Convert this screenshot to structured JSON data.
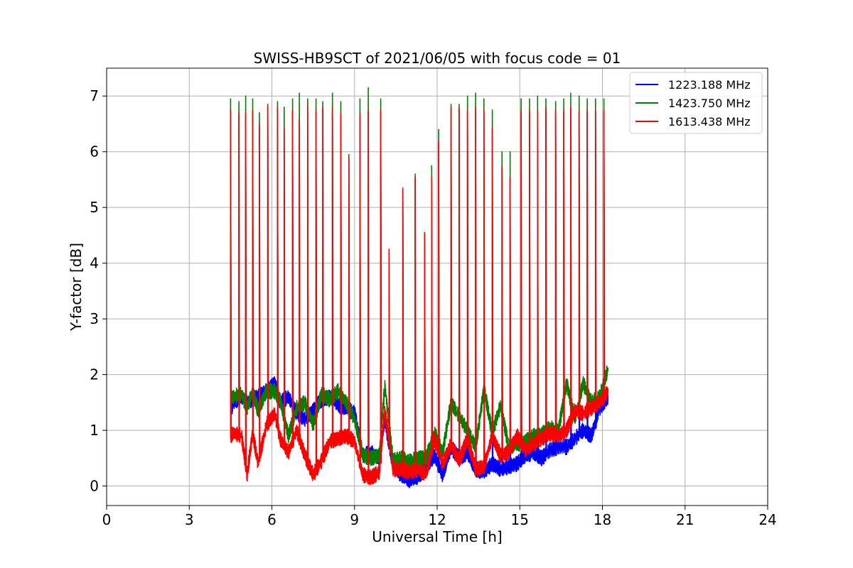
{
  "chart_data": {
    "type": "line",
    "title": "SWISS-HB9SCT of 2021/06/05 with focus code = 01",
    "xlabel": "Universal Time [h]",
    "ylabel": "Y-factor [dB]",
    "xlim": [
      0,
      24
    ],
    "ylim": [
      -0.35,
      7.5
    ],
    "xticks": [
      0,
      3,
      6,
      9,
      12,
      15,
      18,
      21,
      24
    ],
    "yticks": [
      0,
      1,
      2,
      3,
      4,
      5,
      6,
      7
    ],
    "grid": true,
    "legend_position": "top-right",
    "colors": {
      "1223.188 MHz": "#0000ff",
      "1423.750 MHz": "#008000",
      "1613.438 MHz": "#ff0000"
    },
    "series": [
      {
        "name": "1223.188 MHz",
        "color": "#0000ff",
        "x": [
          4.5,
          4.6,
          4.9,
          5.1,
          5.3,
          5.5,
          5.8,
          6.1,
          6.3,
          6.6,
          6.9,
          7.2,
          7.5,
          7.8,
          8.1,
          8.4,
          8.7,
          9.0,
          9.3,
          9.6,
          9.9,
          10.1,
          10.4,
          10.7,
          11.0,
          11.3,
          11.6,
          11.9,
          12.2,
          12.5,
          12.8,
          13.1,
          13.4,
          13.7,
          14.0,
          14.3,
          14.6,
          14.9,
          15.2,
          15.5,
          15.8,
          16.1,
          16.4,
          16.7,
          17.0,
          17.3,
          17.6,
          17.9,
          18.2
        ],
        "y": [
          1.3,
          1.5,
          1.6,
          1.5,
          1.55,
          1.6,
          1.7,
          1.85,
          1.5,
          1.6,
          1.3,
          1.2,
          1.35,
          1.55,
          1.6,
          1.45,
          1.4,
          1.3,
          0.55,
          0.6,
          0.5,
          1.2,
          0.35,
          0.2,
          0.1,
          0.15,
          0.35,
          0.55,
          0.2,
          0.7,
          0.5,
          0.6,
          0.3,
          0.25,
          0.4,
          0.3,
          0.35,
          0.4,
          0.55,
          0.6,
          0.5,
          0.65,
          0.7,
          0.7,
          0.85,
          1.0,
          0.9,
          1.4,
          1.6
        ]
      },
      {
        "name": "1423.750 MHz",
        "color": "#008000",
        "x": [
          4.5,
          4.6,
          4.9,
          5.1,
          5.3,
          5.5,
          5.8,
          6.1,
          6.3,
          6.6,
          6.9,
          7.2,
          7.5,
          7.8,
          8.1,
          8.4,
          8.7,
          9.0,
          9.3,
          9.6,
          9.9,
          10.1,
          10.4,
          10.7,
          11.0,
          11.3,
          11.6,
          11.9,
          12.2,
          12.5,
          12.8,
          13.1,
          13.4,
          13.7,
          14.0,
          14.3,
          14.6,
          14.9,
          15.2,
          15.5,
          15.8,
          16.1,
          16.4,
          16.7,
          17.0,
          17.3,
          17.6,
          17.9,
          18.2
        ],
        "y": [
          1.6,
          1.6,
          1.65,
          1.4,
          1.7,
          1.35,
          1.7,
          1.7,
          1.55,
          0.9,
          1.4,
          1.5,
          1.1,
          1.65,
          1.55,
          1.7,
          1.5,
          1.2,
          0.55,
          0.5,
          0.55,
          1.8,
          0.45,
          0.5,
          0.45,
          0.5,
          0.5,
          0.95,
          0.6,
          1.5,
          1.25,
          1.0,
          0.7,
          1.75,
          0.95,
          1.45,
          0.7,
          0.75,
          0.8,
          0.9,
          0.95,
          1.05,
          1.0,
          1.85,
          1.2,
          1.85,
          1.5,
          1.6,
          2.1
        ]
      },
      {
        "name": "1613.438 MHz",
        "color": "#ff0000",
        "x": [
          4.5,
          4.6,
          4.9,
          5.1,
          5.3,
          5.5,
          5.8,
          6.1,
          6.3,
          6.6,
          6.9,
          7.2,
          7.5,
          7.8,
          8.1,
          8.4,
          8.7,
          9.0,
          9.3,
          9.6,
          9.9,
          10.1,
          10.4,
          10.7,
          11.0,
          11.3,
          11.6,
          11.9,
          12.2,
          12.5,
          12.8,
          13.1,
          13.4,
          13.7,
          14.0,
          14.3,
          14.6,
          14.9,
          15.2,
          15.5,
          15.8,
          16.1,
          16.4,
          16.7,
          17.0,
          17.3,
          17.6,
          17.9,
          18.2
        ],
        "y": [
          0.9,
          0.95,
          0.9,
          0.2,
          0.95,
          0.4,
          1.1,
          1.3,
          0.85,
          0.6,
          1.0,
          0.55,
          0.2,
          0.45,
          0.8,
          0.85,
          0.9,
          0.8,
          0.2,
          0.15,
          0.25,
          1.35,
          0.3,
          0.3,
          0.25,
          0.3,
          0.2,
          0.85,
          0.4,
          0.75,
          0.45,
          0.85,
          0.3,
          0.35,
          0.9,
          0.55,
          0.6,
          0.9,
          0.65,
          0.75,
          0.85,
          0.95,
          0.9,
          1.0,
          1.35,
          1.3,
          1.4,
          1.5,
          1.7
        ]
      }
    ],
    "calibration_spikes": {
      "x": [
        4.5,
        4.8,
        5.05,
        5.3,
        5.55,
        5.85,
        6.2,
        6.45,
        6.75,
        7.0,
        7.3,
        7.6,
        7.85,
        8.2,
        8.5,
        8.8,
        9.2,
        9.5,
        9.95,
        10.25,
        10.75,
        11.2,
        11.55,
        11.8,
        12.05,
        12.5,
        12.8,
        13.1,
        13.4,
        13.7,
        14.0,
        14.35,
        14.65,
        15.05,
        15.35,
        15.65,
        15.95,
        16.3,
        16.6,
        16.85,
        17.15,
        17.45,
        17.75,
        18.05
      ],
      "green_peak": [
        6.95,
        6.9,
        7.0,
        6.95,
        6.7,
        6.85,
        6.9,
        6.8,
        6.95,
        7.05,
        6.95,
        6.95,
        6.9,
        7.05,
        6.9,
        5.95,
        6.95,
        7.15,
        6.95,
        4.25,
        5.35,
        5.6,
        4.55,
        5.75,
        6.4,
        6.85,
        6.85,
        7.0,
        7.05,
        6.95,
        6.75,
        6.0,
        6.0,
        6.95,
        6.95,
        7.0,
        6.95,
        6.9,
        6.95,
        7.05,
        7.0,
        6.95,
        6.95,
        6.95
      ],
      "red_peak": [
        6.75,
        6.7,
        6.7,
        6.75,
        6.5,
        6.85,
        6.8,
        6.45,
        6.75,
        6.6,
        6.85,
        6.75,
        6.8,
        6.8,
        6.7,
        5.9,
        6.7,
        6.75,
        6.75,
        4.25,
        5.35,
        5.55,
        4.55,
        5.55,
        6.2,
        6.8,
        6.8,
        6.75,
        6.8,
        6.75,
        6.45,
        5.75,
        5.55,
        6.75,
        6.75,
        6.75,
        6.8,
        6.75,
        6.75,
        6.8,
        6.75,
        6.75,
        6.75,
        6.75
      ]
    }
  }
}
